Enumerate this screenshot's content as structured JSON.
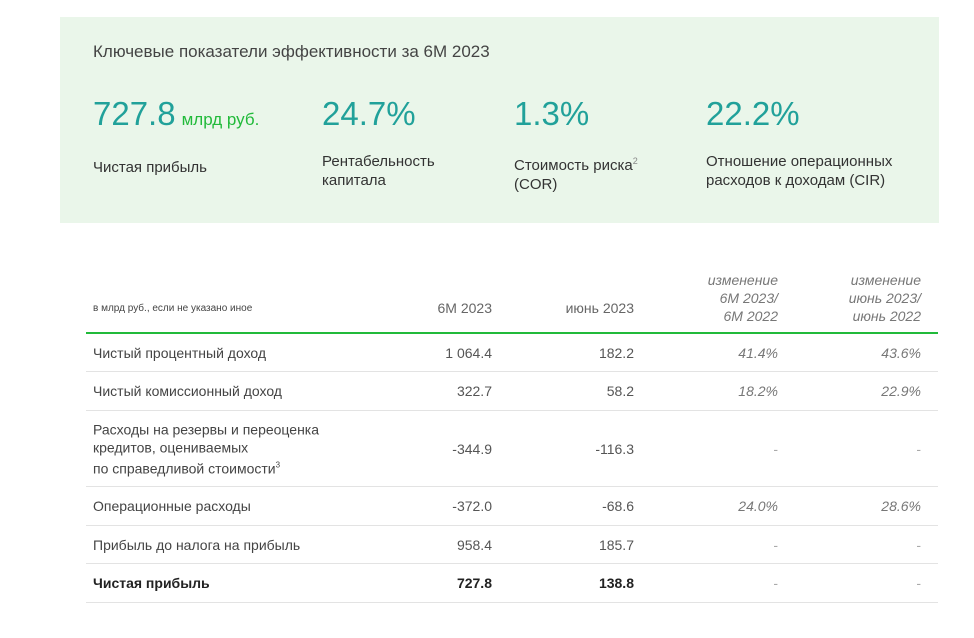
{
  "panel": {
    "title": "Ключевые показатели эффективности за 6М 2023",
    "kpis": [
      {
        "value": "727.8",
        "unit": "млрд руб.",
        "label_line1": "Чистая прибыль",
        "label_line2": ""
      },
      {
        "value": "24.7%",
        "unit": "",
        "label_line1": "Рентабельность",
        "label_line2": "капитала"
      },
      {
        "value": "1.3%",
        "unit": "",
        "label_line1": "Стоимость риска",
        "label_sup": "2",
        "label_line2": "(COR)"
      },
      {
        "value": "22.2%",
        "unit": "",
        "label_line1": "Отношение операционных",
        "label_line2": "расходов к доходам (CIR)"
      }
    ],
    "colors": {
      "value": "#21a19a",
      "unit": "#21ba3a",
      "background": "#eaf6ea"
    }
  },
  "table": {
    "unit_note": "в млрд руб., если не указано иное",
    "headers": {
      "col1": "6М 2023",
      "col2": "июнь 2023",
      "col3": [
        "изменение",
        "6М 2023/",
        "6М 2022"
      ],
      "col4": [
        "изменение",
        "июнь 2023/",
        "июнь 2022"
      ]
    },
    "rows": [
      {
        "label": [
          "Чистый процентный доход"
        ],
        "v1": "1 064.4",
        "v2": "182.2",
        "v3": "41.4%",
        "v4": "43.6%"
      },
      {
        "label": [
          "Чистый комиссионный доход"
        ],
        "v1": "322.7",
        "v2": "58.2",
        "v3": "18.2%",
        "v4": "22.9%"
      },
      {
        "label": [
          "Расходы на резервы и переоценка",
          "кредитов, оцениваемых",
          "по справедливой стоимости"
        ],
        "label_sup": "3",
        "v1": "-344.9",
        "v2": "-116.3",
        "v3": "-",
        "v4": "-"
      },
      {
        "label": [
          "Операционные расходы"
        ],
        "v1": "-372.0",
        "v2": "-68.6",
        "v3": "24.0%",
        "v4": "28.6%"
      },
      {
        "label": [
          "Прибыль до налога на прибыль"
        ],
        "v1": "958.4",
        "v2": "185.7",
        "v3": "-",
        "v4": "-"
      },
      {
        "label": [
          "Чистая прибыль"
        ],
        "v1": "727.8",
        "v2": "138.8",
        "v3": "-",
        "v4": "-"
      }
    ],
    "colors": {
      "header_rule": "#21ba3a"
    }
  }
}
